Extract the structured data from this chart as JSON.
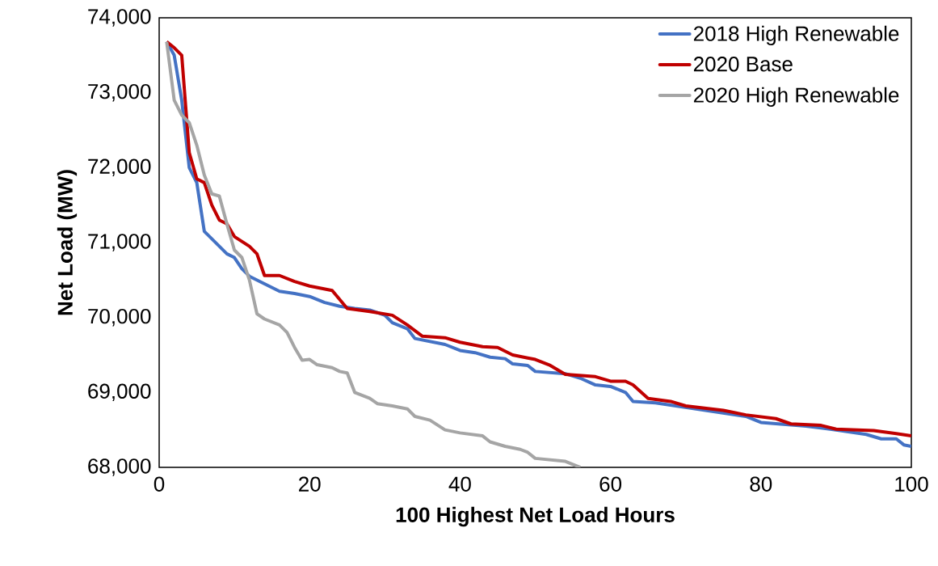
{
  "chart_data": {
    "type": "line",
    "xlabel": "100 Highest Net Load Hours",
    "ylabel": "Net Load (MW)",
    "xlim": [
      0,
      100
    ],
    "xticks": [
      0,
      20,
      40,
      60,
      80,
      100
    ],
    "ylim": [
      68000,
      74000
    ],
    "yticks": [
      {
        "value": 68000,
        "label": "68,000"
      },
      {
        "value": 69000,
        "label": "69,000"
      },
      {
        "value": 70000,
        "label": "70,000"
      },
      {
        "value": 71000,
        "label": "71,000"
      },
      {
        "value": 72000,
        "label": "72,000"
      },
      {
        "value": 73000,
        "label": "73,000"
      },
      {
        "value": 74000,
        "label": "74,000"
      }
    ],
    "grid": false,
    "legend": "top right",
    "marker": "none",
    "line_style": "solid",
    "series": [
      {
        "name": "2018 High Renewable",
        "color": "#4472c4",
        "x": [
          1,
          2,
          3,
          4,
          5,
          6,
          7,
          8,
          9,
          10,
          11,
          12,
          14,
          16,
          18,
          20,
          22,
          24,
          26,
          28,
          30,
          31,
          33,
          34,
          36,
          38,
          40,
          42,
          44,
          46,
          47,
          49,
          50,
          54,
          56,
          58,
          60,
          62,
          63,
          66,
          70,
          74,
          78,
          80,
          86,
          90,
          94,
          96,
          98,
          99,
          100
        ],
        "values": [
          73680,
          73500,
          72900,
          72000,
          71800,
          71150,
          71050,
          70950,
          70850,
          70800,
          70650,
          70550,
          70450,
          70350,
          70320,
          70280,
          70200,
          70150,
          70120,
          70100,
          70030,
          69930,
          69850,
          69720,
          69680,
          69640,
          69560,
          69530,
          69470,
          69450,
          69380,
          69360,
          69280,
          69250,
          69190,
          69100,
          69080,
          69000,
          68880,
          68860,
          68800,
          68740,
          68680,
          68600,
          68550,
          68500,
          68440,
          68380,
          68380,
          68300,
          68280
        ]
      },
      {
        "name": "2020 Base",
        "color": "#c00000",
        "x": [
          1,
          2,
          3,
          4,
          5,
          6,
          7,
          8,
          9,
          10,
          12,
          13,
          14,
          16,
          18,
          20,
          23,
          25,
          28,
          31,
          33,
          35,
          38,
          40,
          43,
          45,
          47,
          49,
          50,
          52,
          54,
          58,
          60,
          62,
          63,
          65,
          68,
          70,
          75,
          78,
          82,
          84,
          88,
          90,
          95,
          98,
          100
        ],
        "values": [
          73680,
          73600,
          73500,
          72200,
          71850,
          71800,
          71500,
          71300,
          71250,
          71080,
          70950,
          70850,
          70560,
          70560,
          70480,
          70420,
          70360,
          70120,
          70080,
          70030,
          69900,
          69750,
          69730,
          69670,
          69610,
          69600,
          69500,
          69460,
          69440,
          69360,
          69240,
          69210,
          69150,
          69150,
          69100,
          68920,
          68880,
          68820,
          68760,
          68700,
          68650,
          68580,
          68560,
          68510,
          68490,
          68450,
          68420
        ]
      },
      {
        "name": "2020 High Renewable",
        "color": "#a5a5a5",
        "x": [
          1,
          2,
          3,
          4,
          5,
          6,
          7,
          8,
          9,
          10,
          11,
          12,
          13,
          14,
          16,
          17,
          18,
          19,
          20,
          21,
          23,
          24,
          25,
          26,
          28,
          29,
          31,
          33,
          34,
          36,
          38,
          40,
          43,
          44,
          46,
          48,
          49,
          50,
          54,
          55,
          56
        ],
        "values": [
          73680,
          72900,
          72700,
          72600,
          72300,
          71900,
          71650,
          71620,
          71250,
          70900,
          70800,
          70500,
          70050,
          69980,
          69900,
          69800,
          69600,
          69430,
          69440,
          69370,
          69330,
          69280,
          69260,
          69000,
          68920,
          68850,
          68820,
          68780,
          68680,
          68630,
          68500,
          68460,
          68420,
          68340,
          68280,
          68240,
          68200,
          68120,
          68080,
          68040,
          68000
        ]
      }
    ]
  }
}
